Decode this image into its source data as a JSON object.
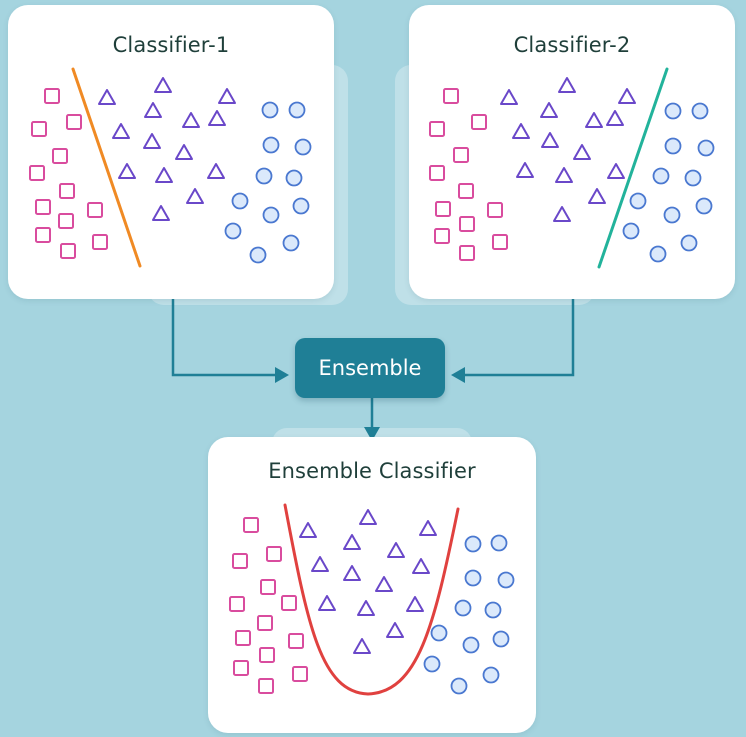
{
  "cards": {
    "c1": {
      "title": "Classifier-1"
    },
    "c2": {
      "title": "Classifier-2"
    },
    "ensemble": {
      "title": "Ensemble Classifier"
    }
  },
  "node": {
    "label": "Ensemble"
  },
  "colors": {
    "background": "#a5d4df",
    "square": "#d94c9e",
    "triangle": "#6a48c9",
    "circle": "#4a78d0",
    "circle_fill": "#dbe9fb",
    "boundary_1": "#f08a24",
    "boundary_2": "#22b39b",
    "boundary_ensemble": "#e0413f",
    "node": "#1f7f96",
    "arrow": "#1f7f96"
  },
  "icons": {
    "square": "square-marker-icon",
    "triangle": "triangle-marker-icon",
    "circle": "circle-marker-icon",
    "arrow": "arrow-head-icon"
  }
}
